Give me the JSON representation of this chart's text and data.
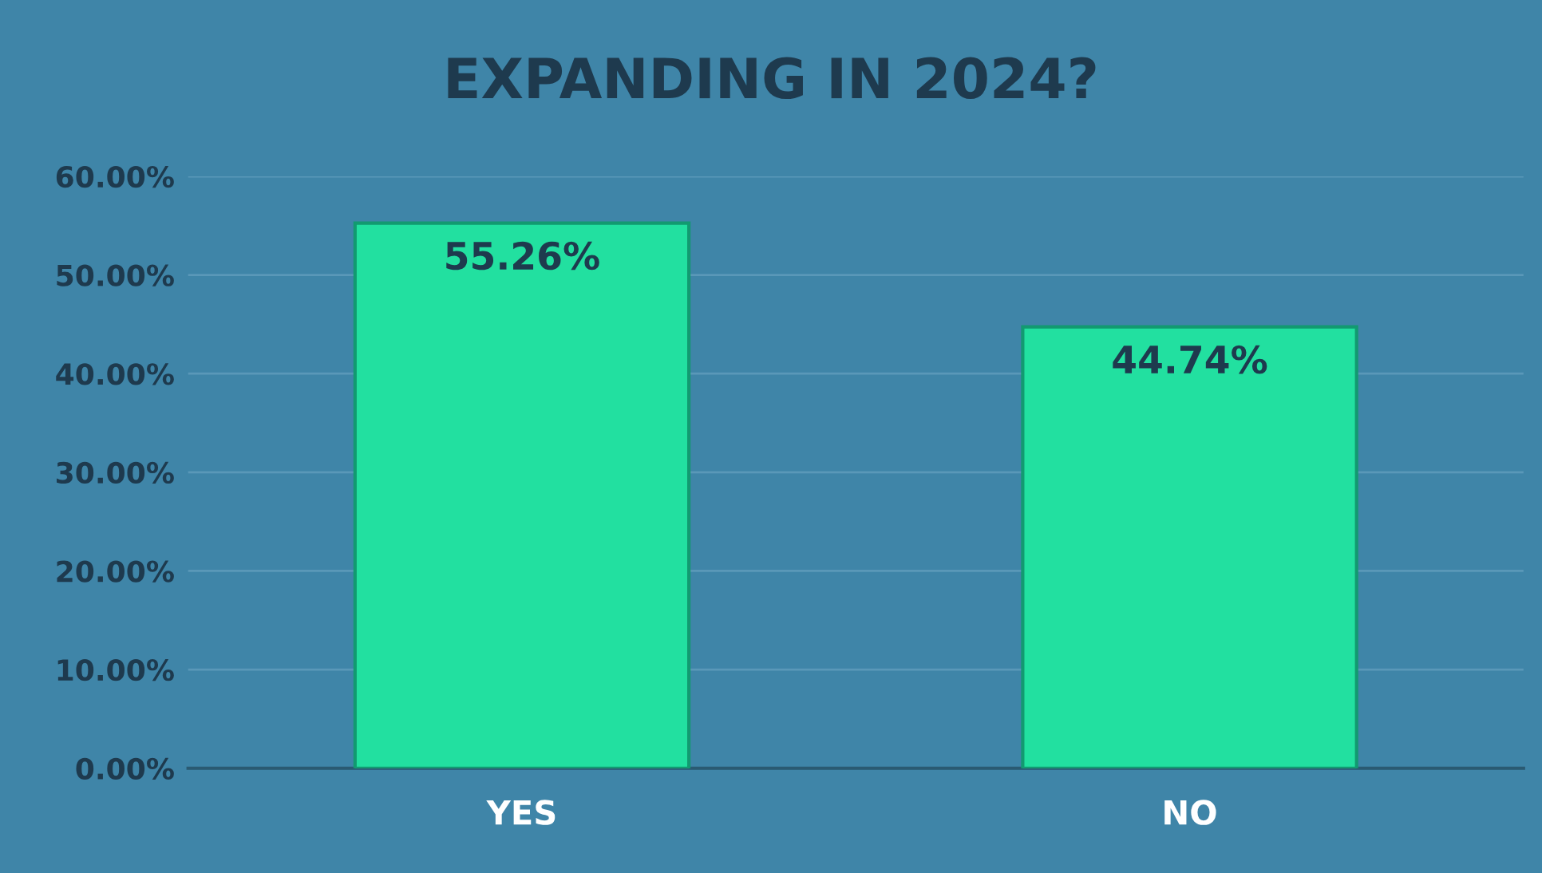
{
  "chart_data": {
    "type": "bar",
    "title": "EXPANDING IN 2024?",
    "categories": [
      "YES",
      "NO"
    ],
    "values": [
      55.26,
      44.74
    ],
    "value_labels": [
      "55.26%",
      "44.74%"
    ],
    "color": "#22e0a0",
    "ylim": [
      0,
      60
    ],
    "yticks": [
      {
        "value": 0,
        "label": "0.00%"
      },
      {
        "value": 10,
        "label": "10.00%"
      },
      {
        "value": 20,
        "label": "20.00%"
      },
      {
        "value": 30,
        "label": "30.00%"
      },
      {
        "value": 40,
        "label": "40.00%"
      },
      {
        "value": 50,
        "label": "50.00%"
      },
      {
        "value": 60,
        "label": "60.00%"
      }
    ],
    "grid": "y"
  }
}
